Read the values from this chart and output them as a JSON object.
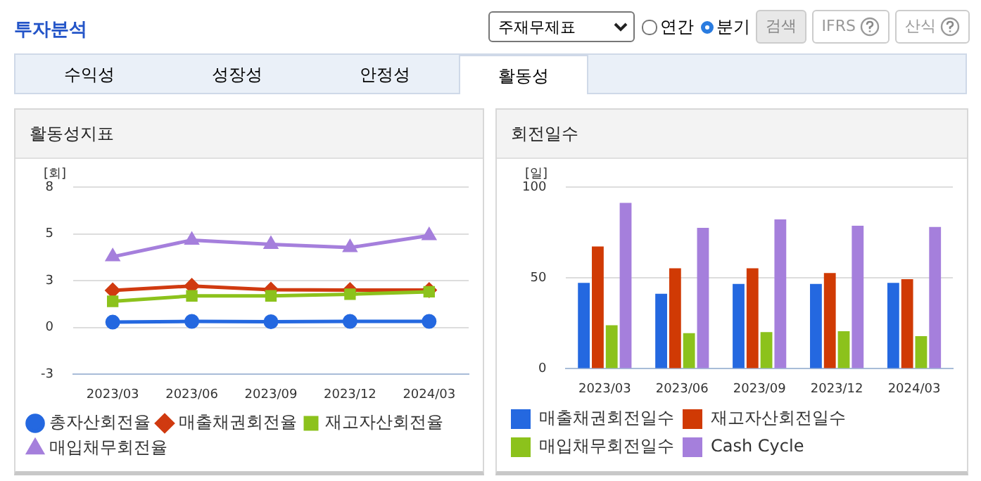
{
  "chart_data": [
    {
      "type": "line",
      "title": "활동성지표",
      "ylabel": "[회]",
      "annotations": [
        "투자분석",
        "주재무제표",
        "연간",
        "분기",
        "검색",
        "IFRS",
        "산식",
        "수익성",
        "성장성",
        "안정성",
        "활동성"
      ],
      "categories": [
        "2023/03",
        "2023/06",
        "2023/09",
        "2023/12",
        "2024/03"
      ],
      "series": [
        {
          "name": "총자산회전율",
          "color": "#2468e0",
          "marker": "circle",
          "values": [
            0.29,
            0.33,
            0.31,
            0.33,
            0.33
          ]
        },
        {
          "name": "매출채권회전율",
          "color": "#d03a10",
          "marker": "diamond",
          "values": [
            1.98,
            2.22,
            2.02,
            2.0,
            2.0
          ]
        },
        {
          "name": "재고자산회전율",
          "color": "#8cc21c",
          "marker": "square",
          "values": [
            1.4,
            1.69,
            1.69,
            1.78,
            1.91
          ]
        },
        {
          "name": "매입채무회전율",
          "color": "#a57fdc",
          "marker": "triangle",
          "values": [
            3.78,
            4.67,
            4.44,
            4.27,
            4.91
          ]
        }
      ],
      "ylim": [
        -2.5,
        7.5
      ],
      "yticks": [
        {
          "value": -2.5,
          "label": "-3"
        },
        0,
        {
          "value": 2.5,
          "label": "3"
        },
        5,
        {
          "value": 7.5,
          "label": "8"
        }
      ],
      "grid": "y",
      "legend": "bottom"
    },
    {
      "type": "bar",
      "title": "회전일수",
      "ylabel": "[일]",
      "categories": [
        "2023/03",
        "2023/06",
        "2023/09",
        "2023/12",
        "2024/03"
      ],
      "series": [
        {
          "name": "매출채권회전일수",
          "color": "#2468e0",
          "values": [
            47.3,
            41.3,
            46.7,
            46.7,
            47.3
          ]
        },
        {
          "name": "재고자산회전일수",
          "color": "#d03a04",
          "values": [
            67.3,
            55.3,
            55.3,
            52.7,
            49.3
          ]
        },
        {
          "name": "매입채무회전일수",
          "color": "#8cc21c",
          "values": [
            24,
            19.6,
            20.2,
            20.7,
            18
          ]
        },
        {
          "name": "Cash Cycle",
          "color": "#a57fdc",
          "values": [
            91.3,
            77.6,
            82.2,
            78.7,
            78
          ]
        }
      ],
      "ylim": [
        0,
        100
      ],
      "yticks": [
        0,
        50,
        100
      ],
      "grid": "y",
      "legend": "bottom"
    }
  ]
}
